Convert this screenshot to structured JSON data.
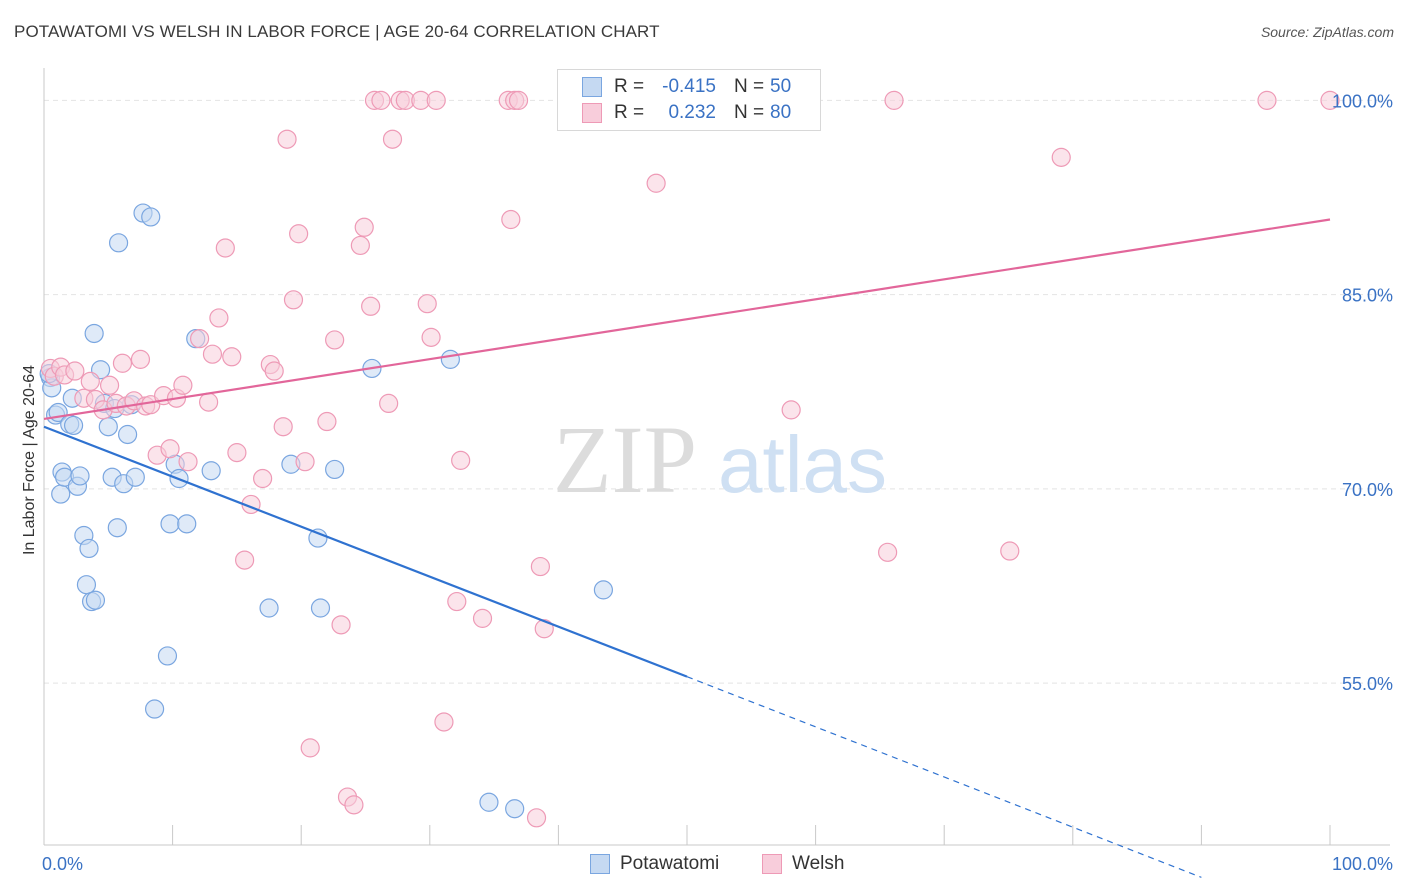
{
  "header": {
    "title": "POTAWATOMI VS WELSH IN LABOR FORCE | AGE 20-64 CORRELATION CHART",
    "source": "Source: ZipAtlas.com"
  },
  "watermark": {
    "zip": "ZIP",
    "atlas": "atlas"
  },
  "legend": {
    "rows": [
      {
        "r_label": "R =",
        "r_value": "-0.415",
        "n_label": "N =",
        "n_value": "50"
      },
      {
        "r_label": "R =",
        "r_value": "0.232",
        "n_label": "N =",
        "n_value": "80"
      }
    ]
  },
  "chart_data": {
    "type": "scatter",
    "xlabel": "",
    "ylabel": "In Labor Force | Age 20-64",
    "xlim": [
      0,
      100
    ],
    "ylim": [
      42.5,
      102.5
    ],
    "x_tick_labels": [
      {
        "value": 0,
        "label": "0.0%"
      },
      {
        "value": 100,
        "label": "100.0%"
      }
    ],
    "y_tick_labels": [
      {
        "value": 55,
        "label": "55.0%"
      },
      {
        "value": 70,
        "label": "70.0%"
      },
      {
        "value": 85,
        "label": "85.0%"
      },
      {
        "value": 100,
        "label": "100.0%"
      }
    ],
    "grid": true,
    "legend_position": "top-center",
    "series": [
      {
        "name": "Potawatomi",
        "color": "#7aa6e0",
        "fill": "#c5d9f2",
        "trend_color": "#2f72d0",
        "trend": {
          "x0": 0,
          "y0": 74.8,
          "x1": 50,
          "y1": 55.5,
          "dash_to_x": 90,
          "dash_to_y": 40.0
        },
        "points": [
          [
            0.5,
            78.6
          ],
          [
            0.6,
            77.8
          ],
          [
            0.9,
            75.7
          ],
          [
            1.1,
            75.9
          ],
          [
            1.3,
            69.6
          ],
          [
            1.4,
            71.3
          ],
          [
            1.6,
            70.9
          ],
          [
            2.0,
            75.0
          ],
          [
            2.2,
            77.0
          ],
          [
            2.3,
            74.9
          ],
          [
            2.6,
            70.2
          ],
          [
            2.8,
            71.0
          ],
          [
            3.1,
            66.4
          ],
          [
            3.3,
            62.6
          ],
          [
            3.5,
            65.4
          ],
          [
            3.7,
            61.3
          ],
          [
            3.9,
            82.0
          ],
          [
            4.0,
            61.4
          ],
          [
            4.4,
            79.2
          ],
          [
            4.7,
            76.6
          ],
          [
            5.0,
            74.8
          ],
          [
            5.3,
            70.9
          ],
          [
            5.5,
            76.2
          ],
          [
            5.7,
            67.0
          ],
          [
            5.8,
            89.0
          ],
          [
            6.2,
            70.4
          ],
          [
            6.5,
            74.2
          ],
          [
            7.1,
            70.9
          ],
          [
            7.7,
            91.3
          ],
          [
            8.3,
            91.0
          ],
          [
            8.6,
            53.0
          ],
          [
            9.6,
            57.1
          ],
          [
            9.8,
            67.3
          ],
          [
            10.2,
            71.9
          ],
          [
            10.5,
            70.8
          ],
          [
            11.1,
            67.3
          ],
          [
            11.8,
            81.6
          ],
          [
            13.0,
            71.4
          ],
          [
            17.5,
            60.8
          ],
          [
            19.2,
            71.9
          ],
          [
            21.3,
            66.2
          ],
          [
            21.5,
            60.8
          ],
          [
            22.6,
            71.5
          ],
          [
            25.5,
            79.3
          ],
          [
            31.6,
            80.0
          ],
          [
            34.6,
            45.8
          ],
          [
            36.6,
            45.3
          ],
          [
            43.5,
            62.2
          ],
          [
            0.4,
            78.9
          ],
          [
            6.8,
            76.5
          ]
        ]
      },
      {
        "name": "Welsh",
        "color": "#ee9ab6",
        "fill": "#f8cddb",
        "trend_color": "#e2669a",
        "trend": {
          "x0": 0,
          "y0": 75.4,
          "x1": 100,
          "y1": 90.8
        },
        "points": [
          [
            0.5,
            79.3
          ],
          [
            0.8,
            78.7
          ],
          [
            1.3,
            79.4
          ],
          [
            1.6,
            78.8
          ],
          [
            2.4,
            79.1
          ],
          [
            3.1,
            77.0
          ],
          [
            3.6,
            78.3
          ],
          [
            4.0,
            76.9
          ],
          [
            4.6,
            76.1
          ],
          [
            5.1,
            78.0
          ],
          [
            5.6,
            76.6
          ],
          [
            6.1,
            79.7
          ],
          [
            6.4,
            76.4
          ],
          [
            7.0,
            76.8
          ],
          [
            7.5,
            80.0
          ],
          [
            7.9,
            76.4
          ],
          [
            8.3,
            76.5
          ],
          [
            8.8,
            72.6
          ],
          [
            9.3,
            77.2
          ],
          [
            9.8,
            73.1
          ],
          [
            10.3,
            77.0
          ],
          [
            10.8,
            78.0
          ],
          [
            11.2,
            72.1
          ],
          [
            12.1,
            81.6
          ],
          [
            12.8,
            76.7
          ],
          [
            13.1,
            80.4
          ],
          [
            13.6,
            83.2
          ],
          [
            14.1,
            88.6
          ],
          [
            14.6,
            80.2
          ],
          [
            15.0,
            72.8
          ],
          [
            15.6,
            64.5
          ],
          [
            16.1,
            68.8
          ],
          [
            17.0,
            70.8
          ],
          [
            17.6,
            79.6
          ],
          [
            17.9,
            79.1
          ],
          [
            18.6,
            74.8
          ],
          [
            18.9,
            97.0
          ],
          [
            19.4,
            84.6
          ],
          [
            19.8,
            89.7
          ],
          [
            20.3,
            72.1
          ],
          [
            20.7,
            50.0
          ],
          [
            22.0,
            75.2
          ],
          [
            22.6,
            81.5
          ],
          [
            23.1,
            59.5
          ],
          [
            23.6,
            46.2
          ],
          [
            24.1,
            45.6
          ],
          [
            24.6,
            88.8
          ],
          [
            24.9,
            90.2
          ],
          [
            25.4,
            84.1
          ],
          [
            25.7,
            100.0
          ],
          [
            26.2,
            100.0
          ],
          [
            26.8,
            76.6
          ],
          [
            27.1,
            97.0
          ],
          [
            27.7,
            100.0
          ],
          [
            28.1,
            100.0
          ],
          [
            29.3,
            100.0
          ],
          [
            29.8,
            84.3
          ],
          [
            30.1,
            81.7
          ],
          [
            30.5,
            100.0
          ],
          [
            31.1,
            52.0
          ],
          [
            32.1,
            61.3
          ],
          [
            32.4,
            72.2
          ],
          [
            34.1,
            60.0
          ],
          [
            36.1,
            100.0
          ],
          [
            36.6,
            100.0
          ],
          [
            36.3,
            90.8
          ],
          [
            36.9,
            100.0
          ],
          [
            38.3,
            44.6
          ],
          [
            38.6,
            64.0
          ],
          [
            38.9,
            59.2
          ],
          [
            41.3,
            100.0
          ],
          [
            41.9,
            100.0
          ],
          [
            47.6,
            93.6
          ],
          [
            58.1,
            76.1
          ],
          [
            65.6,
            65.1
          ],
          [
            66.1,
            100.0
          ],
          [
            75.1,
            65.2
          ],
          [
            79.1,
            95.6
          ],
          [
            95.1,
            100.0
          ],
          [
            100.0,
            100.0
          ]
        ]
      }
    ]
  }
}
